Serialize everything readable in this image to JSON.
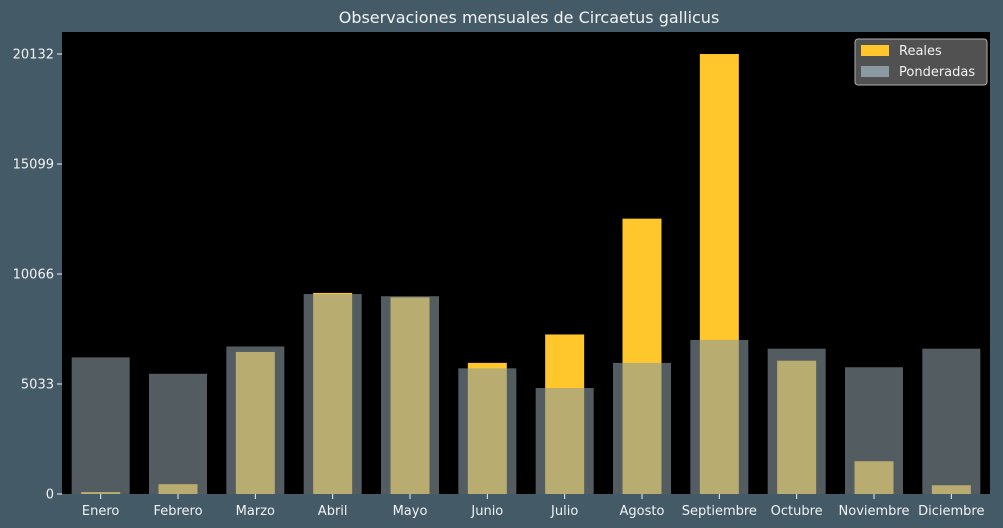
{
  "chart_data": {
    "type": "bar",
    "title": "Observaciones mensuales de Circaetus gallicus",
    "xlabel": "",
    "ylabel": "",
    "categories": [
      "Enero",
      "Febrero",
      "Marzo",
      "Abril",
      "Mayo",
      "Junio",
      "Julio",
      "Agosto",
      "Septiembre",
      "Octubre",
      "Noviembre",
      "Diciembre"
    ],
    "series": [
      {
        "name": "Reales",
        "color": "#ffc72c",
        "values": [
          90,
          450,
          6500,
          9200,
          9000,
          6000,
          7300,
          12600,
          20132,
          6100,
          1500,
          400
        ]
      },
      {
        "name": "Ponderadas",
        "color": "#8a9aa0",
        "values": [
          6250,
          5500,
          6750,
          9150,
          9050,
          5750,
          4850,
          6000,
          7050,
          6650,
          5800,
          6650
        ]
      }
    ],
    "yticks": [
      0,
      5033,
      10066,
      15099,
      20132
    ],
    "ylim": [
      0,
      21140
    ],
    "legend": "top-right",
    "grid": false,
    "background": "#000000",
    "page_background": "#445a67"
  }
}
